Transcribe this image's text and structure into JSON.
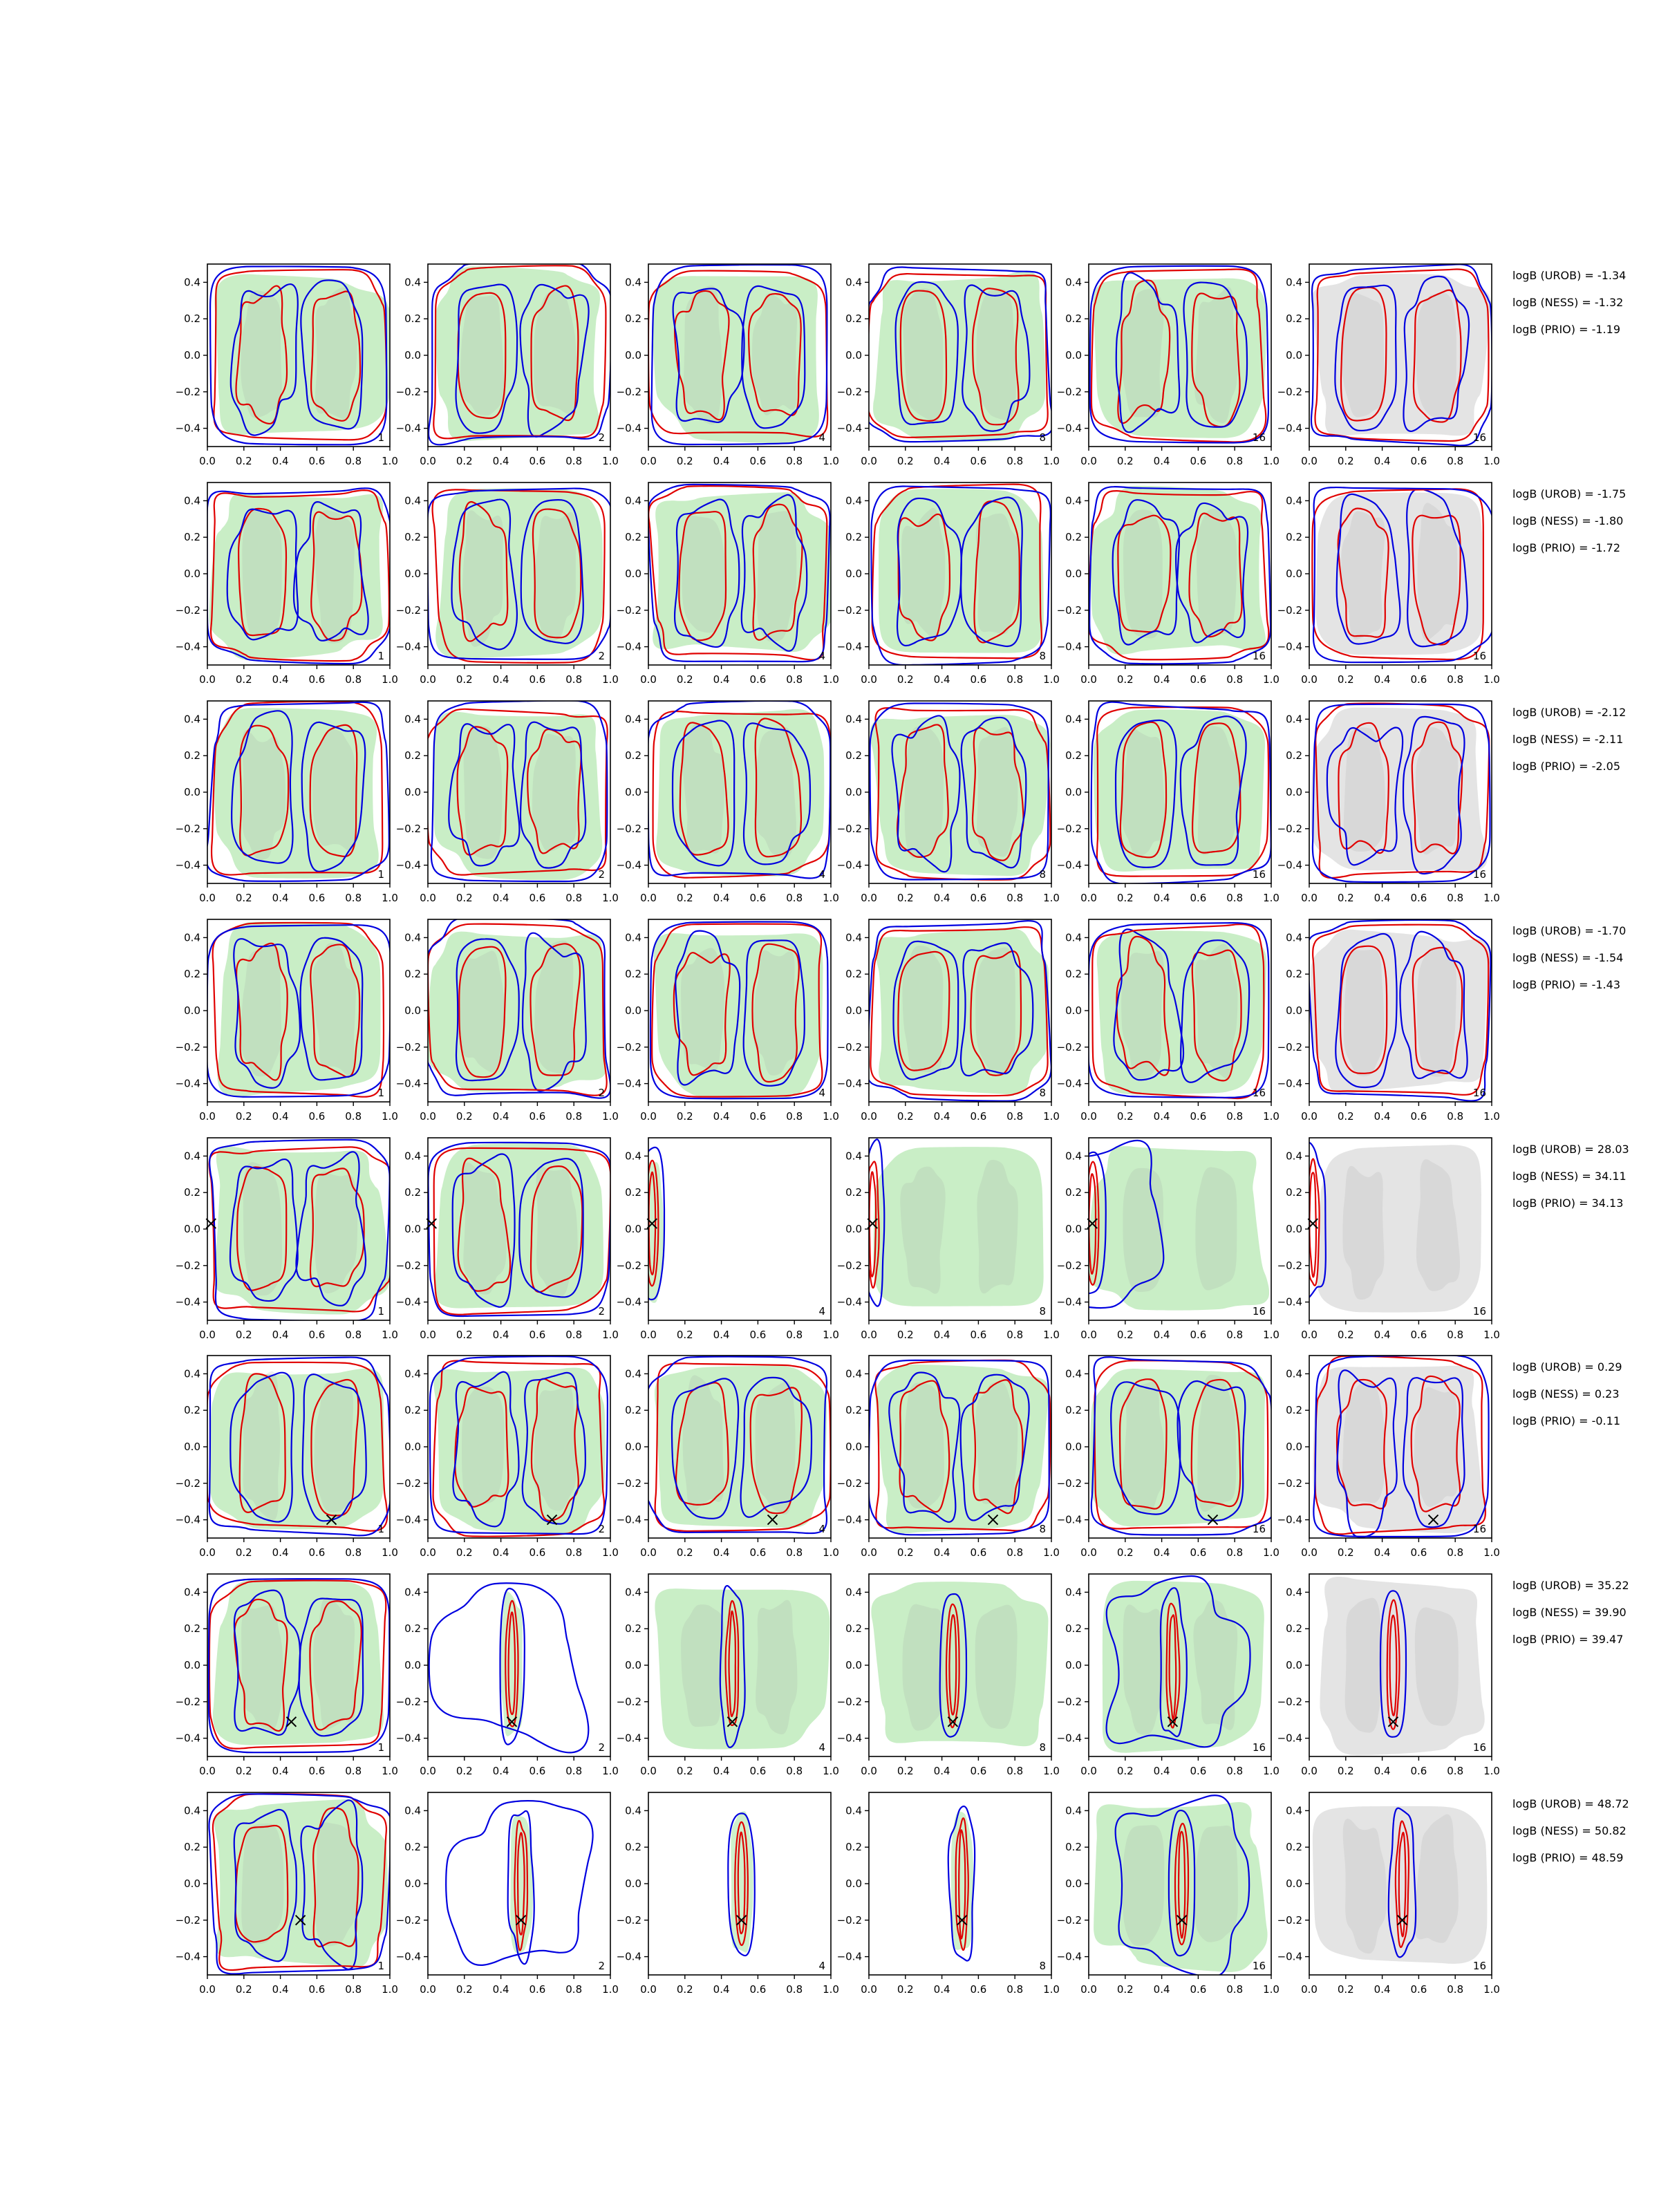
{
  "chart_data": {
    "type": "contour",
    "grid": {
      "rows": 8,
      "cols": 6
    },
    "x_ticks": [
      "0.0",
      "0.2",
      "0.4",
      "0.6",
      "0.8",
      "1.0"
    ],
    "y_ticks": [
      "0.4",
      "0.2",
      "0.0",
      "−0.2",
      "−0.4"
    ],
    "xlim": [
      0,
      1
    ],
    "ylim": [
      -0.5,
      0.5
    ],
    "column_labels": [
      "1",
      "2",
      "4",
      "8",
      "16",
      "16"
    ],
    "colors": {
      "fill_green": "#c9eec6",
      "fill_grey": "#e4e4e4",
      "fill_dark": "#999999",
      "contour_red": "#e00000",
      "contour_blue": "#0000e0",
      "marker": "#000000"
    },
    "rows": [
      {
        "marker": null,
        "logB": [
          "logB (UROB) = -1.34",
          "logB (NESS) = -1.32",
          "logB (PRIO) = -1.19"
        ]
      },
      {
        "marker": null,
        "logB": [
          "logB (UROB) = -1.75",
          "logB (NESS) = -1.80",
          "logB (PRIO) = -1.72"
        ]
      },
      {
        "marker": null,
        "logB": [
          "logB (UROB) = -2.12",
          "logB (NESS) = -2.11",
          "logB (PRIO) = -2.05"
        ]
      },
      {
        "marker": null,
        "logB": [
          "logB (UROB) = -1.70",
          "logB (NESS) = -1.54",
          "logB (PRIO) = -1.43"
        ]
      },
      {
        "marker": [
          0.02,
          0.03
        ],
        "logB": [
          "logB (UROB) = 28.03",
          "logB (NESS) = 34.11",
          "logB (PRIO) = 34.13"
        ]
      },
      {
        "marker": [
          0.68,
          -0.4
        ],
        "logB": [
          "logB (UROB) = 0.29",
          "logB (NESS) = 0.23",
          "logB (PRIO) = -0.11"
        ]
      },
      {
        "marker": [
          0.46,
          -0.31
        ],
        "logB": [
          "logB (UROB) = 35.22",
          "logB (NESS) = 39.90",
          "logB (PRIO) = 39.47"
        ]
      },
      {
        "marker": [
          0.51,
          -0.2
        ],
        "logB": [
          "logB (UROB) = 48.72",
          "logB (NESS) = 50.82",
          "logB (PRIO) = 48.59"
        ]
      }
    ]
  }
}
